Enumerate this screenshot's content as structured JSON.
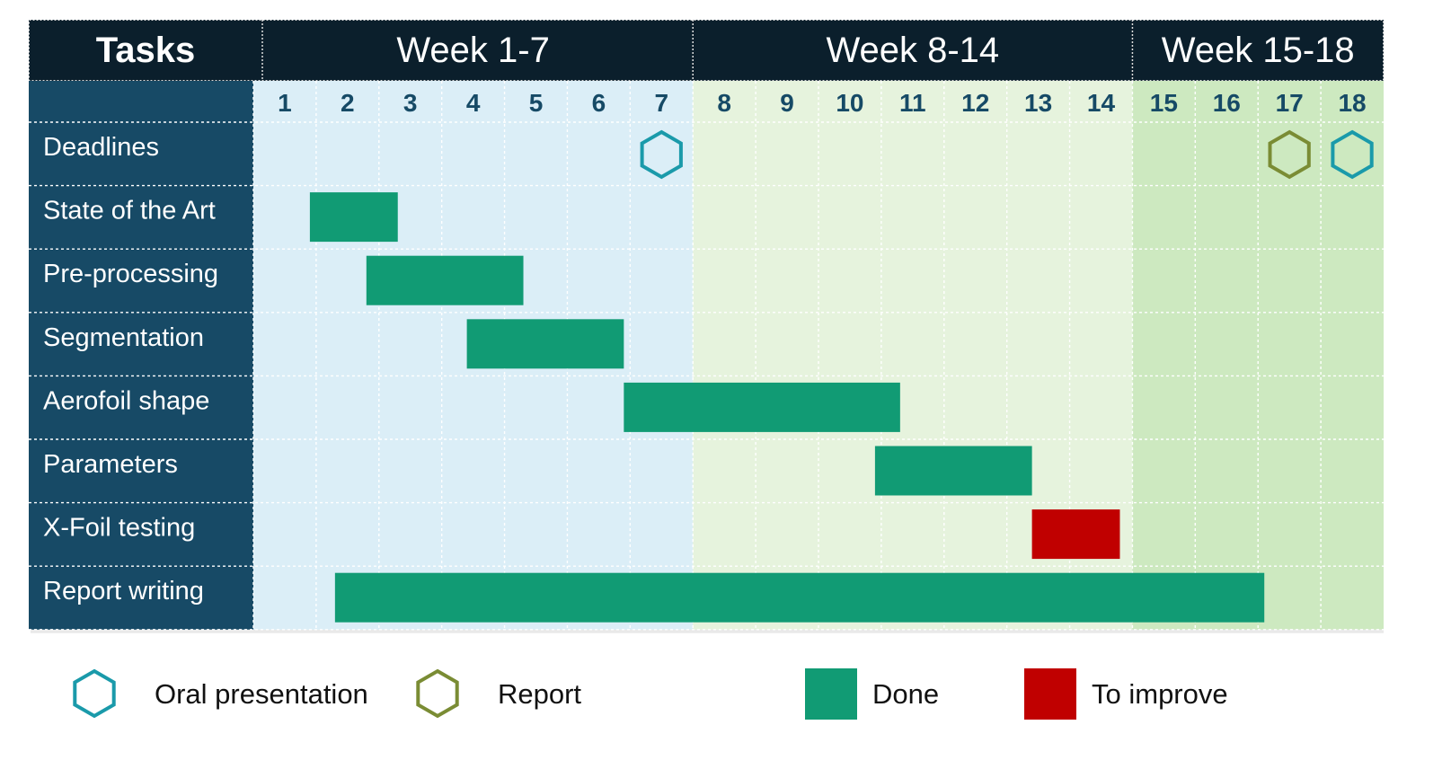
{
  "header": {
    "tasks_label": "Tasks",
    "groups": [
      {
        "label": "Week 1-7",
        "from": 1,
        "to": 7
      },
      {
        "label": "Week 8-14",
        "from": 8,
        "to": 14
      },
      {
        "label": "Week 15-18",
        "from": 15,
        "to": 18
      }
    ]
  },
  "weeks": [
    1,
    2,
    3,
    4,
    5,
    6,
    7,
    8,
    9,
    10,
    11,
    12,
    13,
    14,
    15,
    16,
    17,
    18
  ],
  "tasks": [
    {
      "name": "Deadlines"
    },
    {
      "name": "State of the Art",
      "start": 1.9,
      "end": 3.3,
      "status": "done"
    },
    {
      "name": "Pre-processing",
      "start": 2.8,
      "end": 5.3,
      "status": "done"
    },
    {
      "name": "Segmentation",
      "start": 4.4,
      "end": 6.9,
      "status": "done"
    },
    {
      "name": "Aerofoil shape",
      "start": 6.9,
      "end": 11.3,
      "status": "done"
    },
    {
      "name": "Parameters",
      "start": 10.9,
      "end": 13.4,
      "status": "done"
    },
    {
      "name": "X-Foil testing",
      "start": 13.4,
      "end": 14.8,
      "status": "to_improve"
    },
    {
      "name": "Report writing",
      "start": 2.3,
      "end": 17.1,
      "status": "done"
    }
  ],
  "milestones": [
    {
      "week": 7,
      "type": "oral"
    },
    {
      "week": 17,
      "type": "report"
    },
    {
      "week": 18,
      "type": "oral"
    }
  ],
  "legend": [
    {
      "label": "Oral presentation",
      "symbol": "hexagon",
      "key": "oral"
    },
    {
      "label": "Report",
      "symbol": "hexagon",
      "key": "report"
    },
    {
      "label": "Done",
      "symbol": "square",
      "key": "done"
    },
    {
      "label": "To improve",
      "symbol": "square",
      "key": "to_improve"
    }
  ],
  "colors": {
    "header_bg": "#0b1f2c",
    "task_col_bg": "#174a66",
    "week_numbers": "#164a66",
    "group1_bg": "#dbeef7",
    "group2_bg": "#e6f3dd",
    "group3_bg": "#cde9c0",
    "done": "#119b74",
    "to_improve": "#c00000",
    "oral": "#1a9aaa",
    "report": "#7a8c34"
  }
}
